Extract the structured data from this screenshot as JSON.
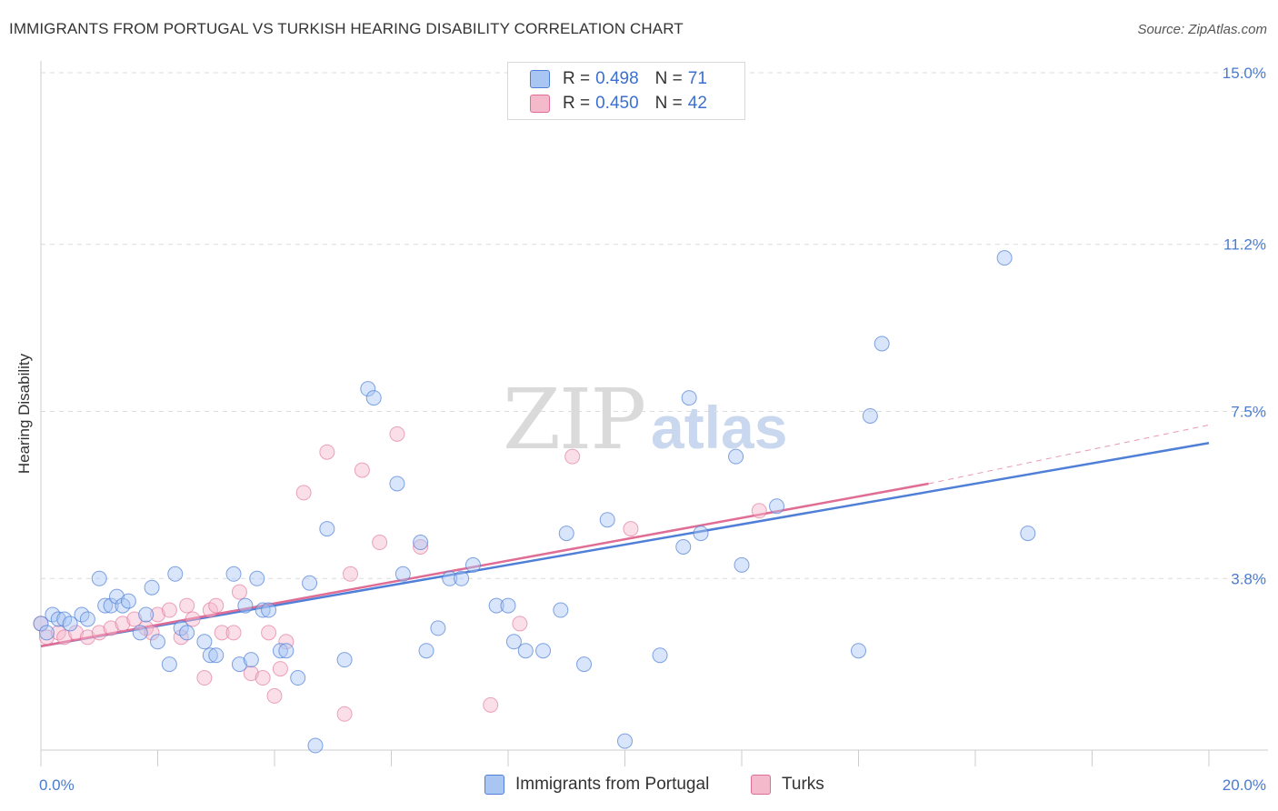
{
  "header": {
    "title": "IMMIGRANTS FROM PORTUGAL VS TURKISH HEARING DISABILITY CORRELATION CHART",
    "source": "Source: ZipAtlas.com"
  },
  "watermark": {
    "part1": "ZIP",
    "part2": "atlas"
  },
  "legend": {
    "rows": [
      {
        "r_label": "R =",
        "r_value": "0.498",
        "n_label": "N =",
        "n_value": "71"
      },
      {
        "r_label": "R =",
        "r_value": "0.450",
        "n_label": "N =",
        "n_value": "42"
      }
    ]
  },
  "bottom_legend": {
    "series1": "Immigrants from Portugal",
    "series2": "Turks"
  },
  "chart_data": {
    "type": "scatter",
    "title": "IMMIGRANTS FROM PORTUGAL VS TURKISH HEARING DISABILITY CORRELATION CHART",
    "xlabel": "",
    "ylabel": "Hearing Disability",
    "xlim": [
      0,
      20
    ],
    "ylim": [
      0,
      15
    ],
    "x_tick_labels": [
      "0.0%",
      "20.0%"
    ],
    "y_ticks": [
      3.8,
      7.5,
      11.2,
      15.0
    ],
    "y_tick_labels": [
      "3.8%",
      "7.5%",
      "11.2%",
      "15.0%"
    ],
    "grid": true,
    "colors": {
      "series1": "#4f7fd6",
      "series1_fill": "#a9c6f3",
      "series2": "#e06d95",
      "series2_fill": "#f5b9cc"
    },
    "series": [
      {
        "name": "Immigrants from Portugal",
        "R": 0.498,
        "N": 71,
        "trend": {
          "x0": 0,
          "y0": 2.3,
          "x1": 20,
          "y1": 6.8
        },
        "points": [
          [
            0.0,
            2.8
          ],
          [
            0.1,
            2.6
          ],
          [
            0.2,
            3.0
          ],
          [
            0.3,
            2.9
          ],
          [
            0.4,
            2.9
          ],
          [
            0.5,
            2.8
          ],
          [
            0.7,
            3.0
          ],
          [
            0.8,
            2.9
          ],
          [
            1.0,
            3.8
          ],
          [
            1.1,
            3.2
          ],
          [
            1.2,
            3.2
          ],
          [
            1.3,
            3.4
          ],
          [
            1.4,
            3.2
          ],
          [
            1.5,
            3.3
          ],
          [
            1.7,
            2.6
          ],
          [
            1.8,
            3.0
          ],
          [
            1.9,
            3.6
          ],
          [
            2.0,
            2.4
          ],
          [
            2.2,
            1.9
          ],
          [
            2.3,
            3.9
          ],
          [
            2.4,
            2.7
          ],
          [
            2.5,
            2.6
          ],
          [
            2.8,
            2.4
          ],
          [
            2.9,
            2.1
          ],
          [
            3.0,
            2.1
          ],
          [
            3.3,
            3.9
          ],
          [
            3.4,
            1.9
          ],
          [
            3.5,
            3.2
          ],
          [
            3.6,
            2.0
          ],
          [
            3.7,
            3.8
          ],
          [
            3.8,
            3.1
          ],
          [
            3.9,
            3.1
          ],
          [
            4.1,
            2.2
          ],
          [
            4.2,
            2.2
          ],
          [
            4.4,
            1.6
          ],
          [
            4.6,
            3.7
          ],
          [
            4.7,
            0.1
          ],
          [
            4.9,
            4.9
          ],
          [
            5.2,
            2.0
          ],
          [
            5.6,
            8.0
          ],
          [
            5.7,
            7.8
          ],
          [
            6.1,
            5.9
          ],
          [
            6.2,
            3.9
          ],
          [
            6.5,
            4.6
          ],
          [
            6.6,
            2.2
          ],
          [
            6.8,
            2.7
          ],
          [
            7.0,
            3.8
          ],
          [
            7.2,
            3.8
          ],
          [
            7.4,
            4.1
          ],
          [
            7.8,
            3.2
          ],
          [
            8.0,
            3.2
          ],
          [
            8.1,
            2.4
          ],
          [
            8.3,
            2.2
          ],
          [
            8.6,
            2.2
          ],
          [
            8.9,
            3.1
          ],
          [
            9.0,
            4.8
          ],
          [
            9.3,
            1.9
          ],
          [
            9.7,
            5.1
          ],
          [
            10.0,
            0.2
          ],
          [
            10.6,
            2.1
          ],
          [
            11.0,
            4.5
          ],
          [
            11.1,
            7.8
          ],
          [
            11.3,
            4.8
          ],
          [
            11.9,
            6.5
          ],
          [
            12.0,
            4.1
          ],
          [
            12.6,
            5.4
          ],
          [
            14.0,
            2.2
          ],
          [
            14.2,
            7.4
          ],
          [
            14.4,
            9.0
          ],
          [
            16.5,
            10.9
          ],
          [
            16.9,
            4.8
          ]
        ]
      },
      {
        "name": "Turks",
        "R": 0.45,
        "N": 42,
        "trend": {
          "x0": 0,
          "y0": 2.3,
          "x1": 15.2,
          "y1": 5.9,
          "dashed_to_x": 20,
          "dashed_to_y": 7.2
        },
        "points": [
          [
            0.0,
            2.8
          ],
          [
            0.1,
            2.5
          ],
          [
            0.3,
            2.6
          ],
          [
            0.4,
            2.5
          ],
          [
            0.6,
            2.6
          ],
          [
            0.8,
            2.5
          ],
          [
            1.0,
            2.6
          ],
          [
            1.2,
            2.7
          ],
          [
            1.4,
            2.8
          ],
          [
            1.6,
            2.9
          ],
          [
            1.8,
            2.7
          ],
          [
            1.9,
            2.6
          ],
          [
            2.0,
            3.0
          ],
          [
            2.2,
            3.1
          ],
          [
            2.4,
            2.5
          ],
          [
            2.5,
            3.2
          ],
          [
            2.6,
            2.9
          ],
          [
            2.8,
            1.6
          ],
          [
            2.9,
            3.1
          ],
          [
            3.0,
            3.2
          ],
          [
            3.1,
            2.6
          ],
          [
            3.3,
            2.6
          ],
          [
            3.4,
            3.5
          ],
          [
            3.6,
            1.7
          ],
          [
            3.8,
            1.6
          ],
          [
            3.9,
            2.6
          ],
          [
            4.0,
            1.2
          ],
          [
            4.1,
            1.8
          ],
          [
            4.2,
            2.4
          ],
          [
            4.5,
            5.7
          ],
          [
            4.9,
            6.6
          ],
          [
            5.2,
            0.8
          ],
          [
            5.3,
            3.9
          ],
          [
            5.5,
            6.2
          ],
          [
            5.8,
            4.6
          ],
          [
            6.1,
            7.0
          ],
          [
            6.5,
            4.5
          ],
          [
            7.7,
            1.0
          ],
          [
            8.2,
            2.8
          ],
          [
            9.1,
            6.5
          ],
          [
            10.1,
            4.9
          ],
          [
            12.3,
            5.3
          ]
        ]
      }
    ]
  }
}
